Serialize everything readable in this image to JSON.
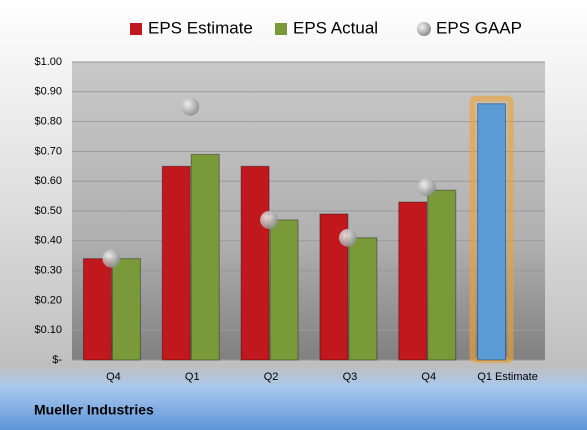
{
  "chart_data": {
    "type": "bar",
    "footer": "Mueller Industries",
    "categories": [
      "Q4",
      "Q1",
      "Q2",
      "Q3",
      "Q4",
      "Q1 Estimate"
    ],
    "series": [
      {
        "name": "EPS Estimate",
        "color": "#c0181c",
        "colors": [
          "#c0181c",
          "#c0181c",
          "#c0181c",
          "#c0181c",
          "#c0181c",
          "#5b9bd5"
        ],
        "values": [
          0.34,
          0.65,
          0.65,
          0.49,
          0.53,
          0.86
        ]
      },
      {
        "name": "EPS Actual",
        "color": "#7a9a3a",
        "values": [
          0.34,
          0.69,
          0.47,
          0.41,
          0.57,
          null
        ]
      },
      {
        "name": "EPS GAAP",
        "color": "#a0a0a0",
        "marker": "circle",
        "values": [
          0.34,
          0.85,
          0.47,
          0.41,
          0.58,
          null
        ]
      }
    ],
    "ylim": [
      0,
      1.0
    ],
    "yticks": [
      {
        "value": 0,
        "label": "$-"
      },
      {
        "value": 0.1,
        "label": "$0.10"
      },
      {
        "value": 0.2,
        "label": "$0.20"
      },
      {
        "value": 0.3,
        "label": "$0.30"
      },
      {
        "value": 0.4,
        "label": "$0.40"
      },
      {
        "value": 0.5,
        "label": "$0.50"
      },
      {
        "value": 0.6,
        "label": "$0.60"
      },
      {
        "value": 0.7,
        "label": "$0.70"
      },
      {
        "value": 0.8,
        "label": "$0.80"
      },
      {
        "value": 0.9,
        "label": "$0.90"
      },
      {
        "value": 1.0,
        "label": "$1.00"
      }
    ],
    "grid": true
  }
}
